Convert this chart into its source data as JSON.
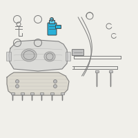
{
  "bg_color": "#f0efea",
  "highlight_color": "#2ab0d8",
  "highlight_fill": "#5dc8e8",
  "line_color": "#7a7a7a",
  "dark_line": "#444444",
  "fill_tank": "#c8c8c8",
  "fill_shield": "#d4d0c4",
  "figsize": [
    2.0,
    2.0
  ],
  "dpi": 100
}
